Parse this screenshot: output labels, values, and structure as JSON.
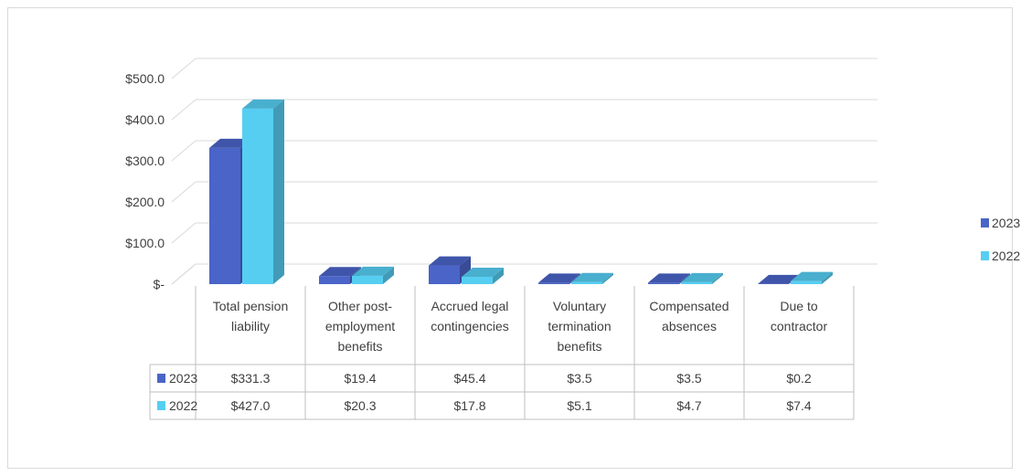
{
  "chart_data": {
    "type": "bar",
    "style": "3d-clustered-column-with-data-table",
    "categories": [
      "Total pension liability",
      "Other post-employment benefits",
      "Accrued legal contingencies",
      "Voluntary termination benefits",
      "Compensated absences",
      "Due to contractor"
    ],
    "category_lines": [
      [
        "Total pension",
        "liability"
      ],
      [
        "Other post-",
        "employment",
        "benefits"
      ],
      [
        "Accrued legal",
        "contingencies"
      ],
      [
        "Voluntary",
        "termination",
        "benefits"
      ],
      [
        "Compensated",
        "absences"
      ],
      [
        "Due to",
        "contractor"
      ]
    ],
    "series": [
      {
        "name": "2023",
        "color": "#4a64c8",
        "values": [
          331.3,
          19.4,
          45.4,
          3.5,
          3.5,
          0.2
        ],
        "labels": [
          "$331.3",
          "$19.4",
          "$45.4",
          "$3.5",
          "$3.5",
          "$0.2"
        ]
      },
      {
        "name": "2022",
        "color": "#56cef2",
        "values": [
          427.0,
          20.3,
          17.8,
          5.1,
          4.7,
          7.4
        ],
        "labels": [
          "$427.0",
          "$20.3",
          "$17.8",
          "$5.1",
          "$4.7",
          "$7.4"
        ]
      }
    ],
    "y_ticks": [
      0,
      100,
      200,
      300,
      400,
      500
    ],
    "y_tick_labels": [
      "$-",
      "$100.0",
      "$200.0",
      "$300.0",
      "$400.0",
      "$500.0"
    ],
    "ylim": [
      0,
      500
    ],
    "grid": true,
    "legend_position": "right",
    "title": "",
    "xlabel": "",
    "ylabel": ""
  }
}
